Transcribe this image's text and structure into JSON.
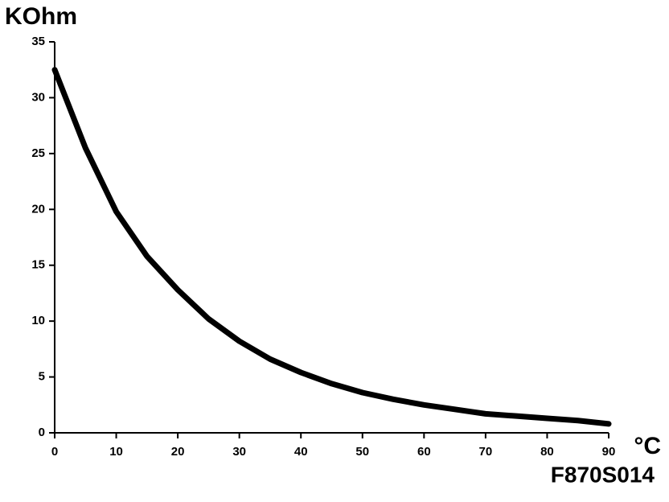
{
  "chart_data": {
    "type": "line",
    "y_label": "KOhm",
    "x_label": "°C",
    "code": "F870S014",
    "x": [
      0,
      5,
      10,
      15,
      20,
      25,
      30,
      35,
      40,
      45,
      50,
      55,
      60,
      65,
      70,
      75,
      80,
      85,
      90
    ],
    "values": [
      32.5,
      25.5,
      19.8,
      15.8,
      12.8,
      10.2,
      8.2,
      6.6,
      5.4,
      4.4,
      3.6,
      3.0,
      2.5,
      2.1,
      1.7,
      1.5,
      1.3,
      1.1,
      0.8
    ],
    "color": "#000000",
    "xlim": [
      0,
      90
    ],
    "xticks": [
      0,
      10,
      20,
      30,
      40,
      50,
      60,
      70,
      80,
      90
    ],
    "ylim": [
      0,
      35
    ],
    "yticks": [
      0,
      5,
      10,
      15,
      20,
      25,
      30,
      35
    ]
  }
}
